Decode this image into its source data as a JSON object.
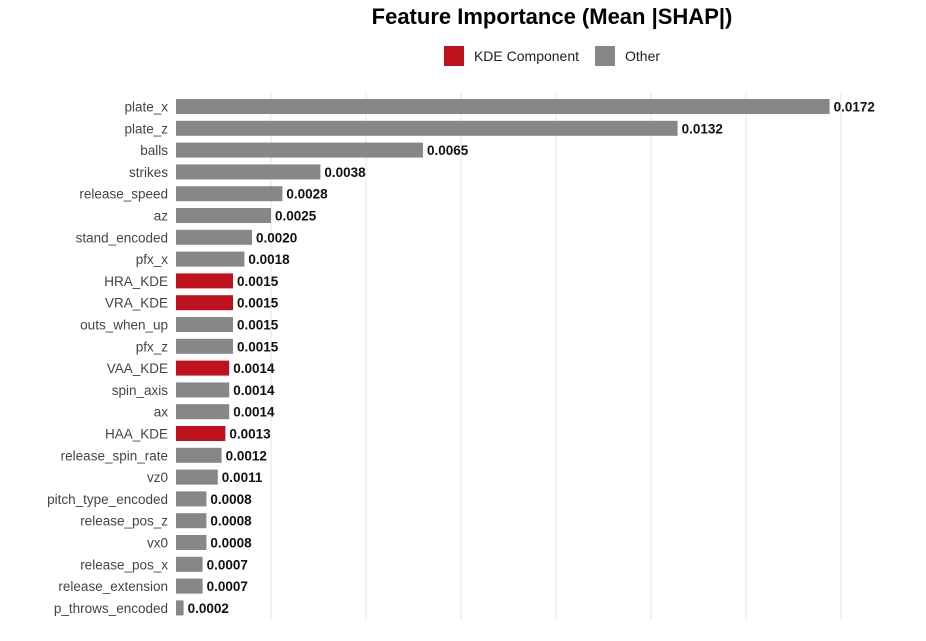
{
  "chart_data": {
    "type": "bar",
    "orientation": "horizontal",
    "title": "Feature Importance (Mean |SHAP|)",
    "xlabel": "",
    "ylabel": "",
    "xlim": [
      0,
      0.0175
    ],
    "grid": "vertical",
    "legend": {
      "placement": "top",
      "entries": [
        {
          "name": "KDE Component",
          "color": "#c0111f"
        },
        {
          "name": "Other",
          "color": "#878787"
        }
      ]
    },
    "categories": [
      "plate_x",
      "plate_z",
      "balls",
      "strikes",
      "release_speed",
      "az",
      "stand_encoded",
      "pfx_x",
      "HRA_KDE",
      "VRA_KDE",
      "outs_when_up",
      "pfx_z",
      "VAA_KDE",
      "spin_axis",
      "ax",
      "HAA_KDE",
      "release_spin_rate",
      "vz0",
      "pitch_type_encoded",
      "release_pos_z",
      "vx0",
      "release_pos_x",
      "release_extension",
      "p_throws_encoded"
    ],
    "values": [
      0.0172,
      0.0132,
      0.0065,
      0.0038,
      0.0028,
      0.0025,
      0.002,
      0.0018,
      0.0015,
      0.0015,
      0.0015,
      0.0015,
      0.0014,
      0.0014,
      0.0014,
      0.0013,
      0.0012,
      0.0011,
      0.0008,
      0.0008,
      0.0008,
      0.0007,
      0.0007,
      0.0002
    ],
    "labels": [
      "0.0172",
      "0.0132",
      "0.0065",
      "0.0038",
      "0.0028",
      "0.0025",
      "0.0020",
      "0.0018",
      "0.0015",
      "0.0015",
      "0.0015",
      "0.0015",
      "0.0014",
      "0.0014",
      "0.0014",
      "0.0013",
      "0.0012",
      "0.0011",
      "0.0008",
      "0.0008",
      "0.0008",
      "0.0007",
      "0.0007",
      "0.0002"
    ],
    "groups": [
      "Other",
      "Other",
      "Other",
      "Other",
      "Other",
      "Other",
      "Other",
      "Other",
      "KDE Component",
      "KDE Component",
      "Other",
      "Other",
      "KDE Component",
      "Other",
      "Other",
      "KDE Component",
      "Other",
      "Other",
      "Other",
      "Other",
      "Other",
      "Other",
      "Other",
      "Other"
    ]
  }
}
